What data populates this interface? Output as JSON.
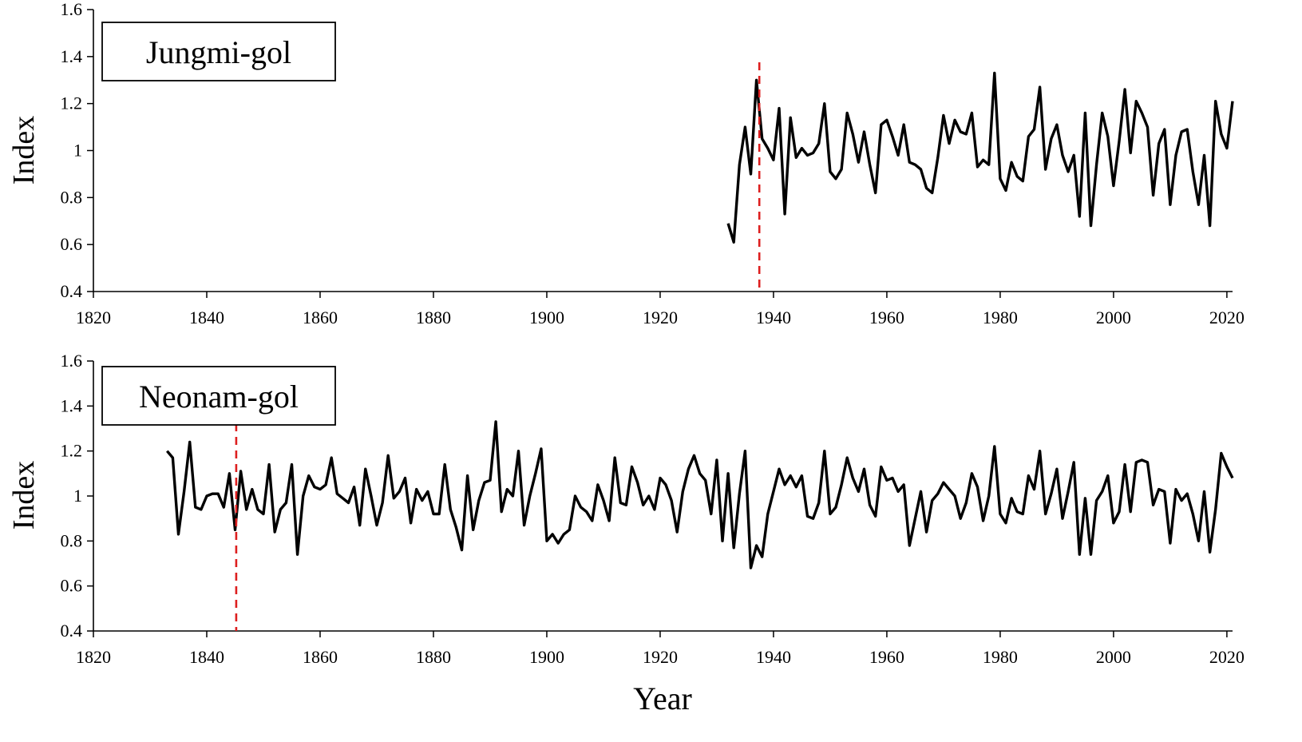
{
  "figure": {
    "xlabel": "Year",
    "ylabel": "Index"
  },
  "chart_data": [
    {
      "type": "line",
      "title": "Jungmi-gol",
      "xlabel": "",
      "ylabel": "Index",
      "xlim": [
        1820,
        2021
      ],
      "ylim": [
        0.4,
        1.6
      ],
      "xticks": [
        1820,
        1840,
        1860,
        1880,
        1900,
        1920,
        1940,
        1960,
        1980,
        2000,
        2020
      ],
      "yticks": [
        0.4,
        0.6,
        0.8,
        1,
        1.2,
        1.4,
        1.6
      ],
      "ytick_labels": [
        "0.4",
        "0.6",
        "0.8",
        "1",
        "1.2",
        "1.4",
        "1.6"
      ],
      "marker_year": 1937.5,
      "marker_color": "#dd1f1f",
      "line_color": "#000000",
      "x_start": 1932,
      "values": [
        0.69,
        0.61,
        0.94,
        1.1,
        0.9,
        1.3,
        1.05,
        1.01,
        0.96,
        1.18,
        0.73,
        1.14,
        0.97,
        1.01,
        0.98,
        0.99,
        1.03,
        1.2,
        0.91,
        0.88,
        0.92,
        1.16,
        1.07,
        0.95,
        1.08,
        0.94,
        0.82,
        1.11,
        1.13,
        1.06,
        0.98,
        1.11,
        0.95,
        0.94,
        0.92,
        0.84,
        0.82,
        0.97,
        1.15,
        1.03,
        1.13,
        1.08,
        1.07,
        1.16,
        0.93,
        0.96,
        0.94,
        1.33,
        0.88,
        0.83,
        0.95,
        0.89,
        0.87,
        1.06,
        1.09,
        1.27,
        0.92,
        1.05,
        1.11,
        0.98,
        0.91,
        0.98,
        0.72,
        1.16,
        0.68,
        0.94,
        1.16,
        1.06,
        0.85,
        1.04,
        1.26,
        0.99,
        1.21,
        1.16,
        1.1,
        0.81,
        1.03,
        1.09,
        0.77,
        0.98,
        1.08,
        1.09,
        0.91,
        0.77,
        0.98,
        0.68,
        1.21,
        1.07,
        1.01,
        1.21
      ]
    },
    {
      "type": "line",
      "title": "Neonam-gol",
      "xlabel": "Year",
      "ylabel": "Index",
      "xlim": [
        1820,
        2021
      ],
      "ylim": [
        0.4,
        1.6
      ],
      "xticks": [
        1820,
        1840,
        1860,
        1880,
        1900,
        1920,
        1940,
        1960,
        1980,
        2000,
        2020
      ],
      "yticks": [
        0.4,
        0.6,
        0.8,
        1,
        1.2,
        1.4,
        1.6
      ],
      "ytick_labels": [
        "0.4",
        "0.6",
        "0.8",
        "1",
        "1.2",
        "1.4",
        "1.6"
      ],
      "marker_year": 1845.2,
      "marker_color": "#dd1f1f",
      "line_color": "#000000",
      "x_start": 1833,
      "values": [
        1.2,
        1.17,
        0.83,
        1.02,
        1.24,
        0.95,
        0.94,
        1.0,
        1.01,
        1.01,
        0.95,
        1.1,
        0.85,
        1.11,
        0.94,
        1.03,
        0.94,
        0.92,
        1.14,
        0.84,
        0.94,
        0.97,
        1.14,
        0.74,
        1.0,
        1.09,
        1.04,
        1.03,
        1.05,
        1.17,
        1.01,
        0.99,
        0.97,
        1.04,
        0.87,
        1.12,
        1.0,
        0.87,
        0.97,
        1.18,
        0.99,
        1.02,
        1.08,
        0.88,
        1.03,
        0.98,
        1.02,
        0.92,
        0.92,
        1.14,
        0.94,
        0.86,
        0.76,
        1.09,
        0.85,
        0.98,
        1.06,
        1.07,
        1.33,
        0.93,
        1.03,
        1.0,
        1.2,
        0.87,
        1.0,
        1.1,
        1.21,
        0.8,
        0.83,
        0.79,
        0.83,
        0.85,
        1.0,
        0.95,
        0.93,
        0.89,
        1.05,
        0.98,
        0.89,
        1.17,
        0.97,
        0.96,
        1.13,
        1.06,
        0.96,
        1.0,
        0.94,
        1.08,
        1.05,
        0.98,
        0.84,
        1.02,
        1.12,
        1.18,
        1.1,
        1.07,
        0.92,
        1.16,
        0.8,
        1.1,
        0.77,
        1.01,
        1.2,
        0.68,
        0.78,
        0.73,
        0.92,
        1.02,
        1.12,
        1.05,
        1.09,
        1.04,
        1.09,
        0.91,
        0.9,
        0.97,
        1.2,
        0.92,
        0.95,
        1.05,
        1.17,
        1.08,
        1.02,
        1.12,
        0.96,
        0.91,
        1.13,
        1.07,
        1.08,
        1.02,
        1.05,
        0.78,
        0.9,
        1.02,
        0.84,
        0.98,
        1.01,
        1.06,
        1.03,
        1.0,
        0.9,
        0.97,
        1.1,
        1.04,
        0.89,
        1.0,
        1.22,
        0.92,
        0.88,
        0.99,
        0.93,
        0.92,
        1.09,
        1.03,
        1.2,
        0.92,
        1.01,
        1.12,
        0.9,
        1.02,
        1.15,
        0.74,
        0.99,
        0.74,
        0.98,
        1.02,
        1.09,
        0.88,
        0.93,
        1.14,
        0.93,
        1.15,
        1.16,
        1.15,
        0.96,
        1.03,
        1.02,
        0.79,
        1.03,
        0.98,
        1.01,
        0.92,
        0.8,
        1.02,
        0.75,
        0.94,
        1.19,
        1.13,
        1.08
      ]
    }
  ]
}
